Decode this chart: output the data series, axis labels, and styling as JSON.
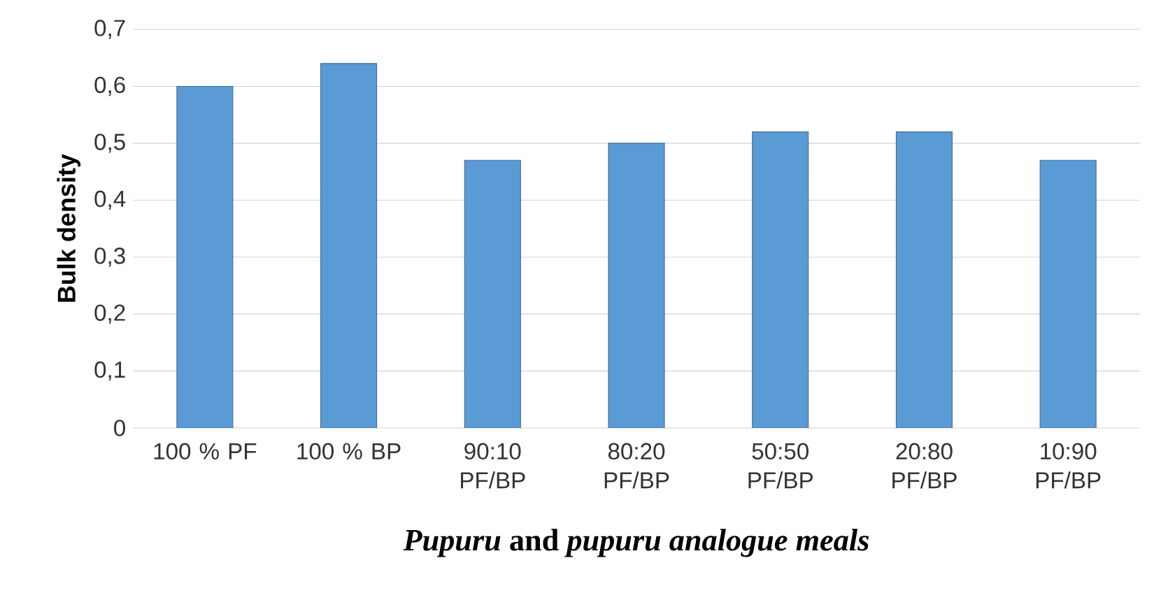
{
  "chart_data": {
    "type": "bar",
    "xlabel": "*Pupuru* and *pupuru analogue meals*",
    "ylabel": "Bulk density",
    "categories": [
      "100 % PF",
      "100 % BP",
      "90:10 PF/BP",
      "80:20 PF/BP",
      "50:50 PF/BP",
      "20:80 PF/BP",
      "10:90 PF/BP"
    ],
    "values": [
      0.6,
      0.64,
      0.47,
      0.5,
      0.52,
      0.52,
      0.47
    ],
    "color": "#5b9bd5",
    "ylim": [
      0,
      0.7
    ],
    "yticks": [
      {
        "value": 0,
        "label": "0"
      },
      {
        "value": 0.1,
        "label": "0,1"
      },
      {
        "value": 0.2,
        "label": "0,2"
      },
      {
        "value": 0.3,
        "label": "0,3"
      },
      {
        "value": 0.4,
        "label": "0,4"
      },
      {
        "value": 0.5,
        "label": "0,5"
      },
      {
        "value": 0.6,
        "label": "0,6"
      },
      {
        "value": 0.7,
        "label": "0,7"
      }
    ],
    "grid": "y"
  }
}
